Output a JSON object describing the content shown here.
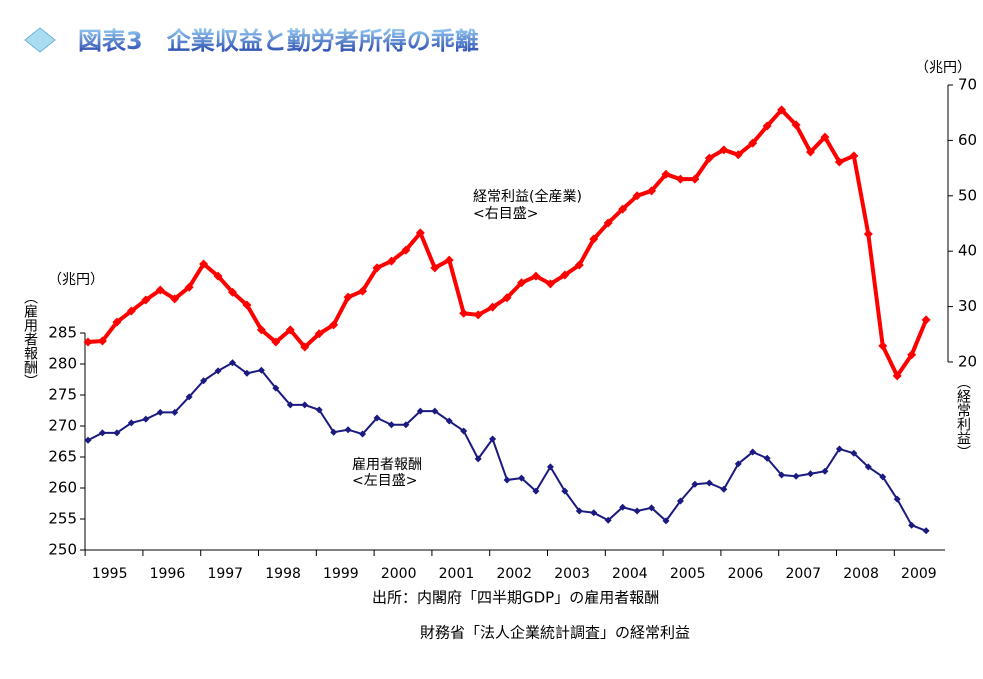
{
  "chart_data": {
    "type": "line",
    "title": "図表3　企業収益と勤労者所得の乖離",
    "ylabel_unit": "（兆円）",
    "ylabel": "（雇用者報酬）",
    "y2label_unit": "（兆円）",
    "y2label": "（経常利益）",
    "categories": [
      "1995",
      null,
      null,
      null,
      "1996",
      null,
      null,
      null,
      "1997",
      null,
      null,
      null,
      "1998",
      null,
      null,
      null,
      "1999",
      null,
      null,
      null,
      "2000",
      null,
      null,
      null,
      "2001",
      null,
      null,
      null,
      "2002",
      null,
      null,
      null,
      "2003",
      null,
      null,
      null,
      "2004",
      null,
      null,
      null,
      "2005",
      null,
      null,
      null,
      "2006",
      null,
      null,
      null,
      "2007",
      null,
      null,
      null,
      "2008",
      null,
      null,
      null,
      "2009",
      null,
      null
    ],
    "ylim": [
      250,
      285
    ],
    "yticks": [
      250,
      255,
      260,
      265,
      270,
      275,
      280,
      285
    ],
    "y2lim": [
      20,
      70
    ],
    "y2ticks": [
      20,
      30,
      40,
      50,
      60,
      70
    ],
    "series": [
      {
        "name": "雇用者報酬",
        "color": "#1a1a80",
        "axis": "y",
        "values": [
          267.7,
          268.9,
          268.9,
          270.5,
          271.1,
          272.2,
          272.2,
          274.7,
          277.3,
          278.9,
          280.2,
          278.5,
          279.0,
          276.1,
          273.4,
          273.4,
          272.6,
          269.0,
          269.4,
          268.7,
          271.3,
          270.2,
          270.2,
          272.4,
          272.4,
          270.8,
          269.2,
          264.7,
          267.9,
          261.3,
          261.6,
          259.5,
          263.4,
          259.5,
          256.3,
          256.0,
          254.8,
          256.9,
          256.3,
          256.8,
          254.7,
          257.9,
          260.6,
          260.8,
          259.8,
          263.9,
          265.8,
          264.8,
          262.1,
          261.9,
          262.3,
          262.7,
          266.3,
          265.6,
          263.4,
          261.8,
          258.2,
          254.0,
          253.1
        ]
      },
      {
        "name": "経常利益(全産業)",
        "color": "#ff0000",
        "axis": "y2",
        "values": [
          23.6,
          23.8,
          27.2,
          29.2,
          31.2,
          33.0,
          31.4,
          33.5,
          37.7,
          35.5,
          32.6,
          30.3,
          25.8,
          23.6,
          25.8,
          22.7,
          25.1,
          26.7,
          31.7,
          32.8,
          37.0,
          38.2,
          40.2,
          43.3,
          37.0,
          38.4,
          28.8,
          28.5,
          29.9,
          31.6,
          34.3,
          35.5,
          34.1,
          35.7,
          37.5,
          42.2,
          45.1,
          47.6,
          50.0,
          50.9,
          53.9,
          53.0,
          53.0,
          56.8,
          58.3,
          57.4,
          59.5,
          62.6,
          65.5,
          62.8,
          57.9,
          60.6,
          56.1,
          57.2,
          43.1,
          22.9,
          17.5,
          21.3,
          27.6
        ]
      }
    ],
    "annotations": [
      "経常利益(全産業)",
      "<右目盛>",
      "雇用者報酬",
      "<左目盛>"
    ],
    "source": [
      "出所：内閣府「四半期GDP」の雇用者報酬",
      "財務省「法人企業統計調査」の経常利益"
    ]
  }
}
